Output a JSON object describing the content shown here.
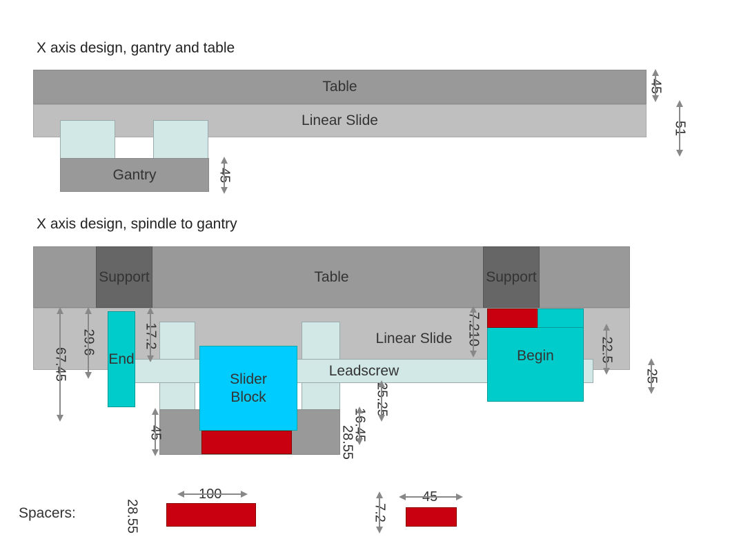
{
  "section1": {
    "title": "X axis design, gantry and table",
    "table": "Table",
    "linear_slide": "Linear Slide",
    "gantry": "Gantry",
    "dims": {
      "table_height": "45",
      "total_height": "51",
      "gantry_height": "45"
    }
  },
  "section2": {
    "title": "X axis design, spindle to gantry",
    "table": "Table",
    "support_left": "Support",
    "support_right": "Support",
    "linear_slide": "Linear Slide",
    "end": "End",
    "begin": "Begin",
    "leadscrew": "Leadscrew",
    "slider_block": "Slider\nBlock",
    "dims": {
      "d67": "67.45",
      "d29": "29.6",
      "d17": "17.2",
      "d7_210": "7.210",
      "d22": "22.5",
      "d25": "25",
      "d25_25": "25.25",
      "d16_45": "16.45",
      "d28_55": "28.55",
      "d45": "45"
    }
  },
  "spacers": {
    "label": "Spacers:",
    "dim_height_left": "28.55",
    "dim_width_left": "100",
    "dim_height_right": "7.2",
    "dim_width_right": "45"
  },
  "colors": {
    "table": "#999999",
    "slide": "#bfbfbf",
    "block_light": "#d2e8e6",
    "support": "#666666",
    "end_begin": "#00cccc",
    "slider_block": "#00ccff",
    "spacer": "#c9000f",
    "arrow": "#888888"
  }
}
